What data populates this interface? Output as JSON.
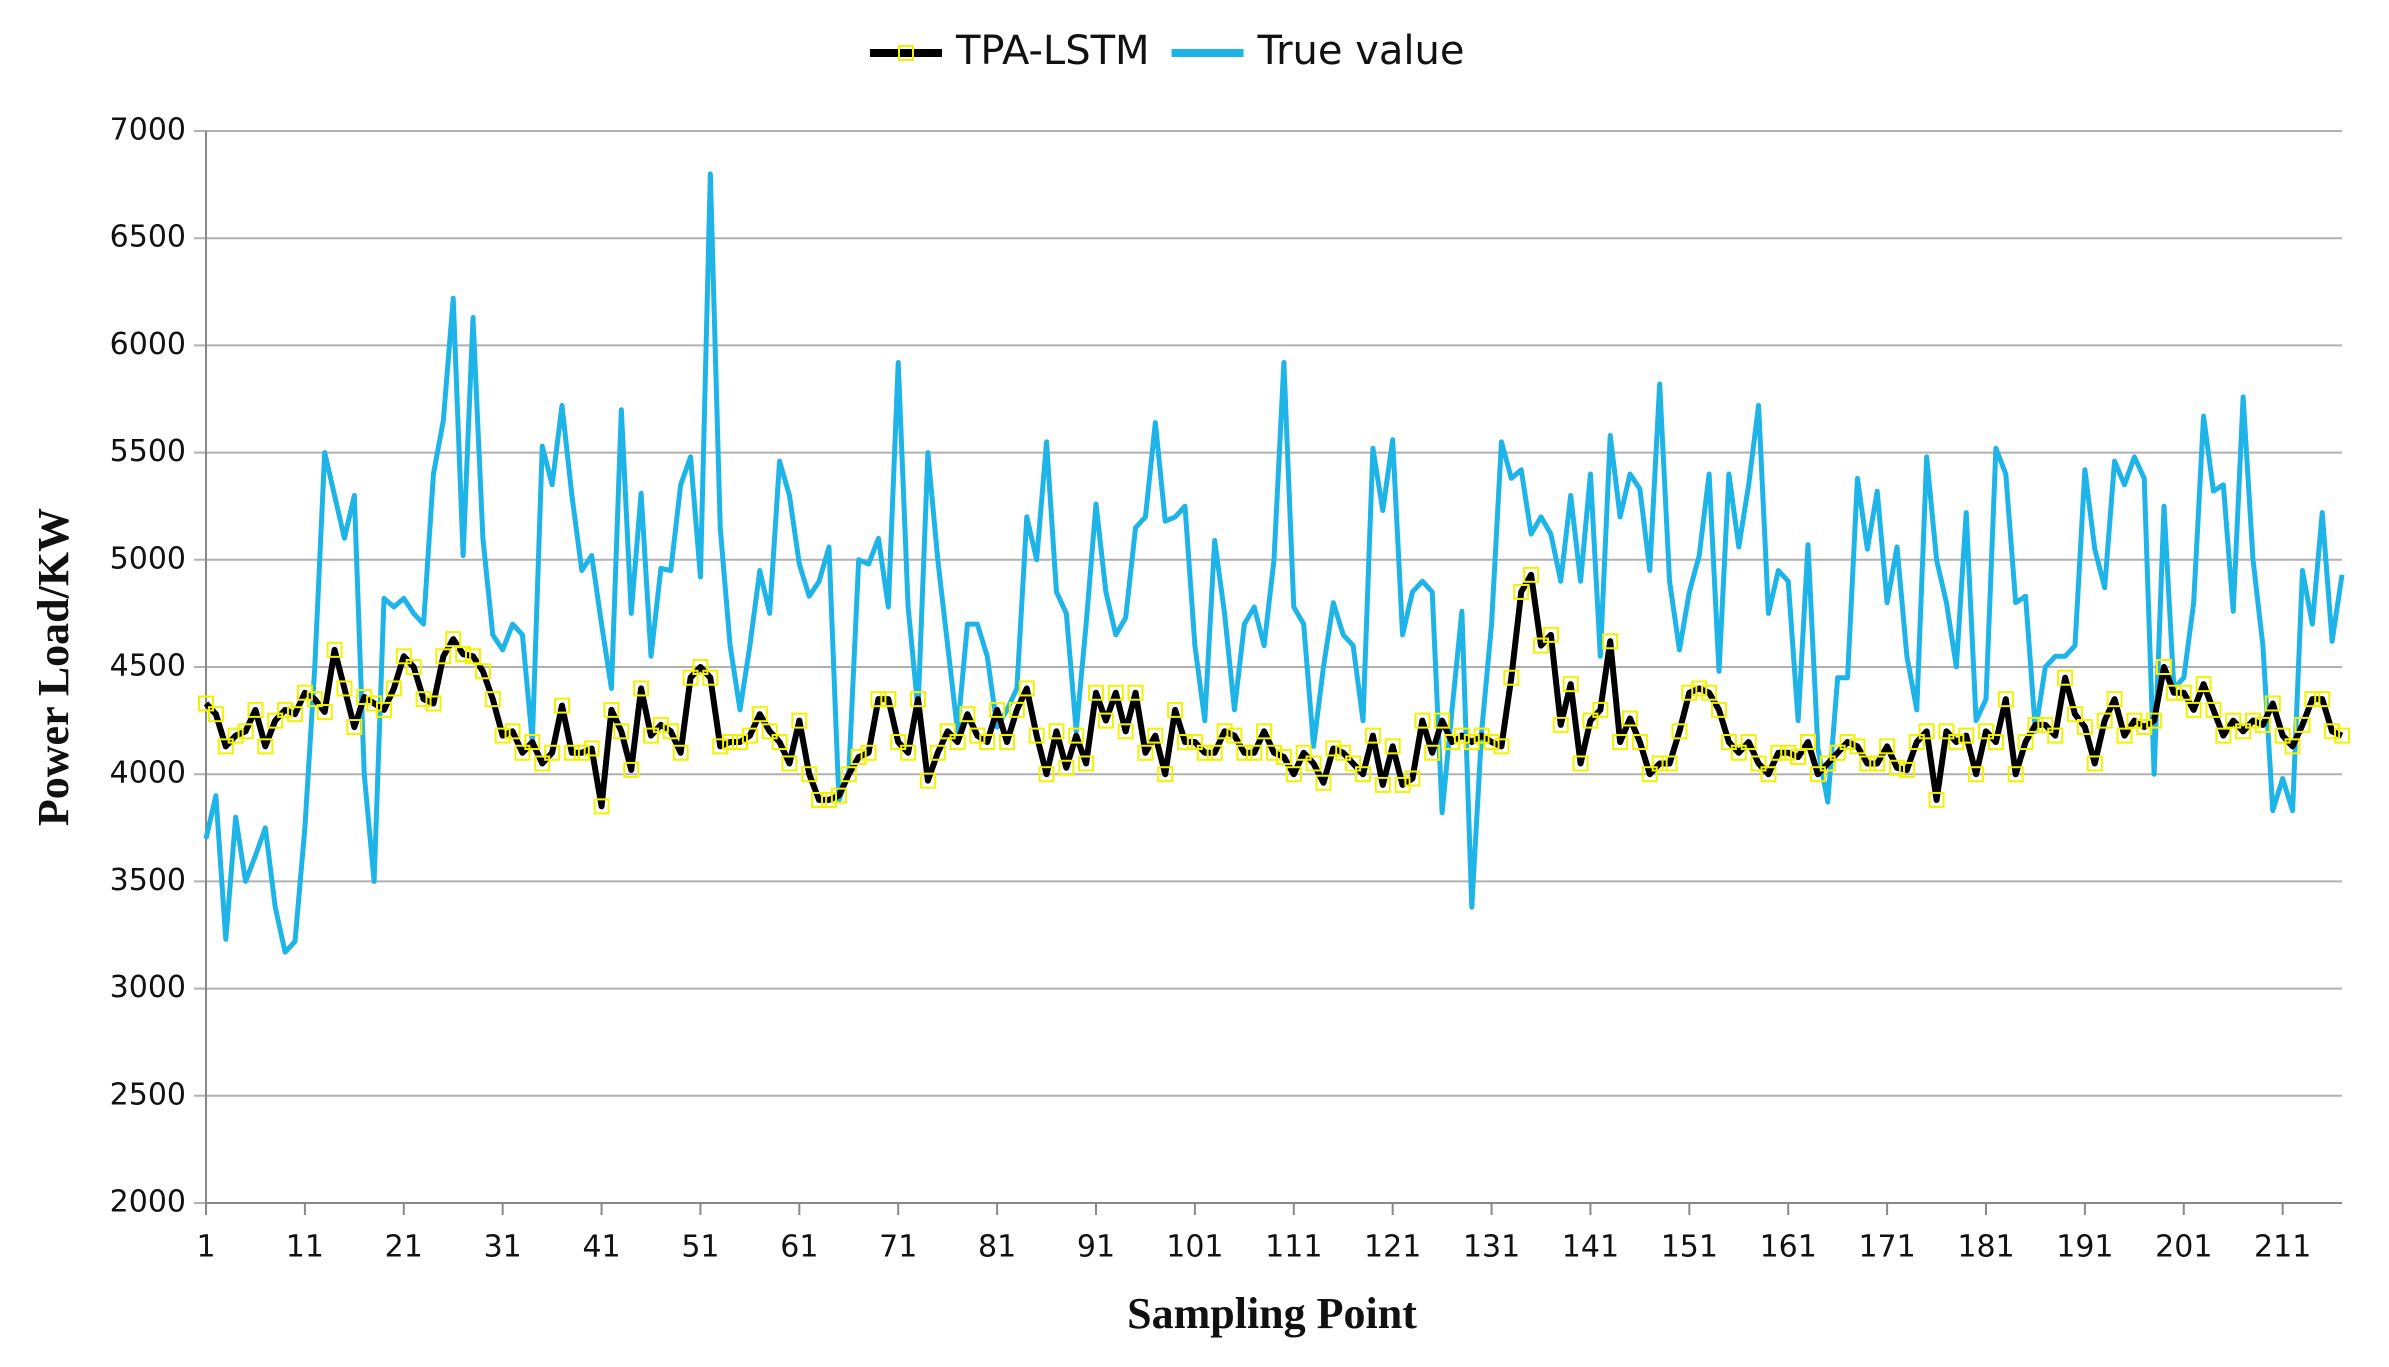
{
  "chart_data": {
    "type": "line",
    "xlabel": "Sampling Point",
    "ylabel": "Power Load/KW",
    "x": [
      1,
      2,
      3,
      4,
      5,
      6,
      7,
      8,
      9,
      10,
      11,
      12,
      13,
      14,
      15,
      16,
      17,
      18,
      19,
      20,
      21,
      22,
      23,
      24,
      25,
      26,
      27,
      28,
      29,
      30,
      31,
      32,
      33,
      34,
      35,
      36,
      37,
      38,
      39,
      40,
      41,
      42,
      43,
      44,
      45,
      46,
      47,
      48,
      49,
      50,
      51,
      52,
      53,
      54,
      55,
      56,
      57,
      58,
      59,
      60,
      61,
      62,
      63,
      64,
      65,
      66,
      67,
      68,
      69,
      70,
      71,
      72,
      73,
      74,
      75,
      76,
      77,
      78,
      79,
      80,
      81,
      82,
      83,
      84,
      85,
      86,
      87,
      88,
      89,
      90,
      91,
      92,
      93,
      94,
      95,
      96,
      97,
      98,
      99,
      100,
      101,
      102,
      103,
      104,
      105,
      106,
      107,
      108,
      109,
      110,
      111,
      112,
      113,
      114,
      115,
      116,
      117,
      118,
      119,
      120,
      121,
      122,
      123,
      124,
      125,
      126,
      127,
      128,
      129,
      130,
      131,
      132,
      133,
      134,
      135,
      136,
      137,
      138,
      139,
      140,
      141,
      142,
      143,
      144,
      145,
      146,
      147,
      148,
      149,
      150,
      151,
      152,
      153,
      154,
      155,
      156,
      157,
      158,
      159,
      160,
      161,
      162,
      163,
      164,
      165,
      166,
      167,
      168,
      169,
      170,
      171,
      172,
      173,
      174,
      175,
      176,
      177,
      178,
      179,
      180,
      181,
      182,
      183,
      184,
      185,
      186,
      187,
      188,
      189,
      190,
      191,
      192,
      193,
      194,
      195,
      196,
      197,
      198,
      199,
      200,
      201,
      202,
      203,
      204,
      205,
      206,
      207,
      208,
      209,
      210,
      211,
      212,
      213,
      214,
      215,
      216,
      217
    ],
    "series": [
      {
        "name": "TPA-LSTM",
        "color": "#000000",
        "marker_color": "#f2f200",
        "values": [
          4330,
          4280,
          4130,
          4180,
          4200,
          4300,
          4130,
          4250,
          4300,
          4280,
          4380,
          4350,
          4290,
          4580,
          4400,
          4220,
          4360,
          4330,
          4300,
          4400,
          4550,
          4500,
          4350,
          4330,
          4550,
          4630,
          4560,
          4550,
          4480,
          4350,
          4180,
          4200,
          4100,
          4150,
          4050,
          4100,
          4320,
          4100,
          4100,
          4120,
          3850,
          4300,
          4200,
          4020,
          4400,
          4180,
          4230,
          4200,
          4100,
          4450,
          4500,
          4450,
          4130,
          4150,
          4150,
          4180,
          4280,
          4200,
          4150,
          4050,
          4250,
          4000,
          3880,
          3880,
          3900,
          4000,
          4080,
          4100,
          4350,
          4350,
          4150,
          4100,
          4350,
          3970,
          4100,
          4200,
          4150,
          4280,
          4180,
          4150,
          4300,
          4150,
          4300,
          4400,
          4180,
          4000,
          4200,
          4030,
          4180,
          4050,
          4380,
          4250,
          4380,
          4200,
          4380,
          4100,
          4180,
          4000,
          4300,
          4150,
          4150,
          4100,
          4100,
          4200,
          4180,
          4100,
          4100,
          4200,
          4100,
          4080,
          4000,
          4100,
          4050,
          3960,
          4120,
          4100,
          4050,
          4000,
          4180,
          3950,
          4130,
          3950,
          3980,
          4250,
          4100,
          4250,
          4150,
          4180,
          4150,
          4180,
          4150,
          4130,
          4450,
          4850,
          4930,
          4600,
          4650,
          4230,
          4420,
          4050,
          4250,
          4300,
          4620,
          4150,
          4260,
          4150,
          4000,
          4050,
          4050,
          4200,
          4380,
          4400,
          4380,
          4300,
          4150,
          4100,
          4150,
          4050,
          4000,
          4100,
          4100,
          4080,
          4150,
          4000,
          4050,
          4100,
          4150,
          4130,
          4050,
          4050,
          4130,
          4030,
          4020,
          4150,
          4200,
          3880,
          4200,
          4150,
          4180,
          4000,
          4200,
          4150,
          4350,
          4000,
          4150,
          4230,
          4230,
          4180,
          4450,
          4280,
          4220,
          4050,
          4250,
          4350,
          4180,
          4250,
          4220,
          4250,
          4500,
          4380,
          4380,
          4300,
          4420,
          4300,
          4180,
          4250,
          4200,
          4250,
          4230,
          4330,
          4180,
          4130,
          4230,
          4350,
          4350,
          4200,
          4180
        ]
      },
      {
        "name": "True value",
        "color": "#1fb4e8",
        "values": [
          3700,
          3900,
          3230,
          3800,
          3500,
          3620,
          3750,
          3380,
          3170,
          3220,
          3750,
          4500,
          5500,
          5300,
          5100,
          5300,
          4000,
          3500,
          4820,
          4780,
          4820,
          4750,
          4700,
          5400,
          5650,
          6220,
          5020,
          6130,
          5100,
          4650,
          4580,
          4700,
          4650,
          4150,
          5530,
          5350,
          5720,
          5300,
          4950,
          5020,
          4700,
          4400,
          5700,
          4750,
          5310,
          4550,
          4960,
          4950,
          5350,
          5480,
          4920,
          6800,
          5150,
          4600,
          4300,
          4600,
          4950,
          4750,
          5460,
          5300,
          4980,
          4830,
          4900,
          5060,
          3880,
          4000,
          5000,
          4980,
          5100,
          4780,
          5920,
          4780,
          4300,
          5500,
          5000,
          4600,
          4200,
          4700,
          4700,
          4550,
          4220,
          4300,
          4400,
          5200,
          5000,
          5550,
          4850,
          4750,
          4200,
          4700,
          5260,
          4850,
          4650,
          4730,
          5150,
          5200,
          5640,
          5180,
          5200,
          5250,
          4600,
          4250,
          5090,
          4750,
          4300,
          4700,
          4780,
          4600,
          5000,
          5920,
          4780,
          4700,
          4130,
          4500,
          4800,
          4650,
          4600,
          4250,
          5520,
          5230,
          5560,
          4650,
          4850,
          4900,
          4850,
          3820,
          4300,
          4760,
          3380,
          4200,
          4700,
          5550,
          5380,
          5420,
          5120,
          5200,
          5120,
          4900,
          5300,
          4900,
          5400,
          4550,
          5580,
          5200,
          5400,
          5330,
          4950,
          5820,
          4900,
          4580,
          4850,
          5020,
          5400,
          4480,
          5400,
          5060,
          5350,
          5720,
          4750,
          4950,
          4900,
          4250,
          5070,
          4120,
          3870,
          4450,
          4450,
          5380,
          5050,
          5320,
          4800,
          5060,
          4550,
          4300,
          5480,
          5000,
          4800,
          4500,
          5220,
          4250,
          4350,
          5520,
          5400,
          4800,
          4830,
          4200,
          4500,
          4550,
          4550,
          4600,
          5420,
          5050,
          4870,
          5460,
          5350,
          5480,
          5380,
          4000,
          5250,
          4400,
          4450,
          4800,
          5670,
          5320,
          5350,
          4760,
          5760,
          5000,
          4600,
          3830,
          3980,
          3830,
          4950,
          4700,
          5220,
          4620,
          4930
        ]
      }
    ],
    "xlim": [
      1,
      217
    ],
    "ylim": [
      2000,
      7000
    ],
    "xticks": [
      1,
      11,
      21,
      31,
      41,
      51,
      61,
      71,
      81,
      91,
      101,
      111,
      121,
      131,
      141,
      151,
      161,
      171,
      181,
      191,
      201,
      211
    ],
    "yticks": [
      2000,
      2500,
      3000,
      3500,
      4000,
      4500,
      5000,
      5500,
      6000,
      6500,
      7000
    ],
    "grid": true,
    "legend": "top"
  }
}
